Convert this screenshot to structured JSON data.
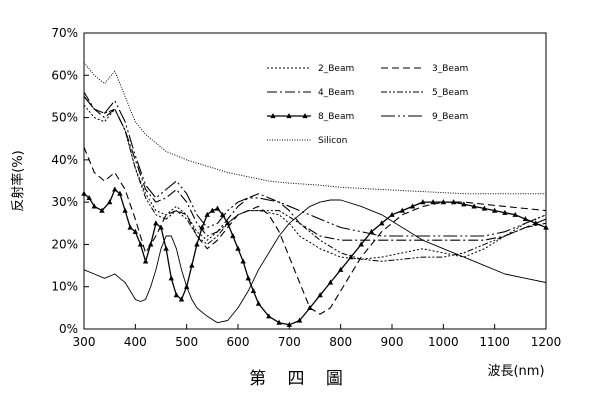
{
  "chart_data": {
    "type": "line",
    "xlabel": "波長(nm)",
    "ylabel": "反射率(%)",
    "caption": "第 四 圖",
    "xlim": [
      300,
      1200
    ],
    "ylim": [
      0,
      70
    ],
    "xticks": [
      300,
      400,
      500,
      600,
      700,
      800,
      900,
      1000,
      1100,
      1200
    ],
    "yticks": [
      0,
      10,
      20,
      30,
      40,
      50,
      60,
      70
    ],
    "ytick_format": "percent",
    "grid": false,
    "legend_position": "top-right",
    "series": [
      {
        "name": "2_Beam",
        "dash": "2,2",
        "width": 1,
        "marker": "none",
        "points": [
          [
            300,
            53
          ],
          [
            320,
            50
          ],
          [
            340,
            49
          ],
          [
            360,
            52
          ],
          [
            380,
            47
          ],
          [
            400,
            38
          ],
          [
            420,
            32
          ],
          [
            440,
            28
          ],
          [
            460,
            27
          ],
          [
            480,
            29
          ],
          [
            500,
            27
          ],
          [
            520,
            23
          ],
          [
            540,
            21
          ],
          [
            560,
            23
          ],
          [
            580,
            25
          ],
          [
            600,
            27
          ],
          [
            620,
            28
          ],
          [
            640,
            28
          ],
          [
            680,
            27
          ],
          [
            700,
            25
          ],
          [
            720,
            22
          ],
          [
            760,
            19
          ],
          [
            800,
            17
          ],
          [
            840,
            16.5
          ],
          [
            880,
            17
          ],
          [
            920,
            18
          ],
          [
            960,
            19
          ],
          [
            1000,
            18
          ],
          [
            1040,
            17
          ],
          [
            1080,
            19
          ],
          [
            1120,
            22
          ],
          [
            1160,
            25
          ],
          [
            1200,
            27
          ]
        ]
      },
      {
        "name": "3_Beam",
        "dash": "7,4",
        "width": 1.1,
        "marker": "none",
        "points": [
          [
            300,
            43
          ],
          [
            320,
            37
          ],
          [
            340,
            35
          ],
          [
            360,
            37
          ],
          [
            380,
            33
          ],
          [
            400,
            26
          ],
          [
            420,
            18
          ],
          [
            440,
            22
          ],
          [
            460,
            27
          ],
          [
            480,
            28
          ],
          [
            500,
            27
          ],
          [
            520,
            22
          ],
          [
            540,
            19
          ],
          [
            560,
            21
          ],
          [
            580,
            24
          ],
          [
            600,
            27
          ],
          [
            620,
            28
          ],
          [
            640,
            29
          ],
          [
            660,
            27
          ],
          [
            680,
            23
          ],
          [
            700,
            17
          ],
          [
            720,
            11
          ],
          [
            740,
            5
          ],
          [
            760,
            3.5
          ],
          [
            780,
            5
          ],
          [
            800,
            9
          ],
          [
            820,
            13
          ],
          [
            840,
            17
          ],
          [
            880,
            23
          ],
          [
            920,
            27
          ],
          [
            960,
            29
          ],
          [
            1000,
            30
          ],
          [
            1040,
            30
          ],
          [
            1080,
            29.5
          ],
          [
            1120,
            29
          ],
          [
            1160,
            28.5
          ],
          [
            1200,
            28
          ]
        ]
      },
      {
        "name": "4_Beam",
        "dash": "10,3,2,3",
        "width": 1.1,
        "marker": "none",
        "points": [
          [
            300,
            56
          ],
          [
            320,
            52
          ],
          [
            340,
            50
          ],
          [
            360,
            52
          ],
          [
            380,
            47
          ],
          [
            400,
            40
          ],
          [
            420,
            33
          ],
          [
            440,
            30
          ],
          [
            460,
            31
          ],
          [
            480,
            33
          ],
          [
            500,
            30
          ],
          [
            520,
            25
          ],
          [
            540,
            22
          ],
          [
            560,
            23
          ],
          [
            580,
            26
          ],
          [
            600,
            29
          ],
          [
            620,
            31
          ],
          [
            640,
            32
          ],
          [
            660,
            31
          ],
          [
            680,
            30
          ],
          [
            700,
            28
          ],
          [
            720,
            25
          ],
          [
            760,
            22
          ],
          [
            800,
            21
          ],
          [
            840,
            21
          ],
          [
            880,
            21
          ],
          [
            920,
            21
          ],
          [
            960,
            21
          ],
          [
            1000,
            21
          ],
          [
            1040,
            21
          ],
          [
            1080,
            21
          ],
          [
            1120,
            22
          ],
          [
            1160,
            24
          ],
          [
            1200,
            26
          ]
        ]
      },
      {
        "name": "5_Beam",
        "dash": "6,2,2,2,2,2",
        "width": 1,
        "marker": "none",
        "points": [
          [
            300,
            55
          ],
          [
            320,
            52
          ],
          [
            340,
            51
          ],
          [
            360,
            52
          ],
          [
            380,
            47
          ],
          [
            400,
            38
          ],
          [
            420,
            31
          ],
          [
            440,
            27
          ],
          [
            460,
            26
          ],
          [
            480,
            28
          ],
          [
            500,
            26
          ],
          [
            520,
            22
          ],
          [
            540,
            20
          ],
          [
            560,
            22
          ],
          [
            580,
            25
          ],
          [
            600,
            27
          ],
          [
            620,
            28
          ],
          [
            640,
            28
          ],
          [
            680,
            28
          ],
          [
            720,
            25
          ],
          [
            760,
            21
          ],
          [
            800,
            18
          ],
          [
            840,
            16.5
          ],
          [
            880,
            16
          ],
          [
            920,
            16.5
          ],
          [
            960,
            17
          ],
          [
            1000,
            17
          ],
          [
            1040,
            18
          ],
          [
            1080,
            20
          ],
          [
            1120,
            22
          ],
          [
            1160,
            24
          ],
          [
            1200,
            25
          ]
        ]
      },
      {
        "name": "8_Beam",
        "dash": "",
        "width": 1.3,
        "marker": "triangle",
        "points": [
          [
            300,
            32
          ],
          [
            310,
            31
          ],
          [
            320,
            29
          ],
          [
            335,
            28
          ],
          [
            350,
            30
          ],
          [
            360,
            33
          ],
          [
            370,
            32
          ],
          [
            380,
            28
          ],
          [
            390,
            24
          ],
          [
            400,
            23
          ],
          [
            410,
            20
          ],
          [
            420,
            16
          ],
          [
            430,
            20
          ],
          [
            440,
            25
          ],
          [
            450,
            24
          ],
          [
            460,
            19
          ],
          [
            470,
            12
          ],
          [
            480,
            8
          ],
          [
            490,
            7
          ],
          [
            500,
            10
          ],
          [
            510,
            15
          ],
          [
            520,
            20
          ],
          [
            530,
            24
          ],
          [
            540,
            27
          ],
          [
            550,
            28
          ],
          [
            560,
            28.5
          ],
          [
            570,
            27
          ],
          [
            580,
            25
          ],
          [
            590,
            22
          ],
          [
            600,
            19
          ],
          [
            610,
            16
          ],
          [
            620,
            12
          ],
          [
            630,
            9
          ],
          [
            640,
            6
          ],
          [
            660,
            3
          ],
          [
            680,
            1.5
          ],
          [
            700,
            1
          ],
          [
            720,
            2
          ],
          [
            740,
            5
          ],
          [
            760,
            8
          ],
          [
            780,
            11
          ],
          [
            800,
            14
          ],
          [
            820,
            17
          ],
          [
            840,
            20
          ],
          [
            860,
            23
          ],
          [
            880,
            25
          ],
          [
            900,
            27
          ],
          [
            920,
            28
          ],
          [
            940,
            29
          ],
          [
            960,
            30
          ],
          [
            980,
            30
          ],
          [
            1000,
            30
          ],
          [
            1020,
            30
          ],
          [
            1040,
            29.5
          ],
          [
            1060,
            29
          ],
          [
            1080,
            28.5
          ],
          [
            1100,
            28
          ],
          [
            1120,
            27.5
          ],
          [
            1140,
            27
          ],
          [
            1160,
            26
          ],
          [
            1180,
            25
          ],
          [
            1200,
            24
          ]
        ]
      },
      {
        "name": "9_Beam",
        "dash": "14,3,2,3,2,3",
        "width": 1.1,
        "marker": "none",
        "points": [
          [
            300,
            55
          ],
          [
            320,
            52
          ],
          [
            340,
            51
          ],
          [
            360,
            54
          ],
          [
            380,
            49
          ],
          [
            400,
            41
          ],
          [
            420,
            34
          ],
          [
            440,
            31
          ],
          [
            460,
            33
          ],
          [
            480,
            35
          ],
          [
            500,
            32
          ],
          [
            520,
            27
          ],
          [
            540,
            24
          ],
          [
            560,
            25
          ],
          [
            580,
            28
          ],
          [
            600,
            30
          ],
          [
            620,
            31
          ],
          [
            640,
            31
          ],
          [
            680,
            30
          ],
          [
            720,
            28
          ],
          [
            760,
            26
          ],
          [
            800,
            24
          ],
          [
            840,
            23
          ],
          [
            880,
            22
          ],
          [
            920,
            22
          ],
          [
            960,
            22
          ],
          [
            1000,
            22
          ],
          [
            1040,
            22
          ],
          [
            1080,
            22
          ],
          [
            1120,
            23
          ],
          [
            1160,
            25
          ],
          [
            1200,
            27
          ]
        ]
      },
      {
        "name": "Silicon",
        "dash": "1,1.5",
        "width": 1,
        "marker": "none",
        "points": [
          [
            300,
            63
          ],
          [
            320,
            60
          ],
          [
            340,
            58
          ],
          [
            360,
            61
          ],
          [
            380,
            55
          ],
          [
            400,
            49
          ],
          [
            420,
            46
          ],
          [
            440,
            44
          ],
          [
            460,
            42
          ],
          [
            480,
            41
          ],
          [
            500,
            40
          ],
          [
            540,
            38.5
          ],
          [
            580,
            37
          ],
          [
            620,
            36
          ],
          [
            660,
            35
          ],
          [
            700,
            34.5
          ],
          [
            760,
            34
          ],
          [
            800,
            33.5
          ],
          [
            880,
            33
          ],
          [
            960,
            32.5
          ],
          [
            1040,
            32
          ],
          [
            1120,
            32
          ],
          [
            1200,
            32
          ]
        ]
      },
      {
        "name": "",
        "dash": "",
        "width": 0.9,
        "marker": "none",
        "points": [
          [
            300,
            14
          ],
          [
            320,
            13
          ],
          [
            340,
            12
          ],
          [
            360,
            13
          ],
          [
            370,
            12
          ],
          [
            380,
            11
          ],
          [
            390,
            9
          ],
          [
            400,
            7
          ],
          [
            410,
            6.5
          ],
          [
            420,
            7
          ],
          [
            430,
            10
          ],
          [
            440,
            14
          ],
          [
            450,
            19
          ],
          [
            460,
            22
          ],
          [
            470,
            22
          ],
          [
            480,
            19
          ],
          [
            490,
            14
          ],
          [
            500,
            10
          ],
          [
            510,
            7
          ],
          [
            520,
            5
          ],
          [
            540,
            3
          ],
          [
            560,
            1.5
          ],
          [
            580,
            2
          ],
          [
            600,
            5
          ],
          [
            620,
            9
          ],
          [
            640,
            14
          ],
          [
            660,
            18
          ],
          [
            680,
            22
          ],
          [
            700,
            25
          ],
          [
            720,
            27
          ],
          [
            740,
            29
          ],
          [
            760,
            30
          ],
          [
            780,
            30.5
          ],
          [
            800,
            30.5
          ],
          [
            840,
            29
          ],
          [
            880,
            27
          ],
          [
            920,
            24
          ],
          [
            960,
            21
          ],
          [
            1000,
            19
          ],
          [
            1040,
            17
          ],
          [
            1080,
            15
          ],
          [
            1120,
            13
          ],
          [
            1160,
            12
          ],
          [
            1200,
            11
          ]
        ]
      }
    ],
    "legend": [
      {
        "ref": 0
      },
      {
        "ref": 1
      },
      {
        "ref": 2
      },
      {
        "ref": 3
      },
      {
        "ref": 4
      },
      {
        "ref": 5
      },
      {
        "ref": 6
      }
    ]
  }
}
